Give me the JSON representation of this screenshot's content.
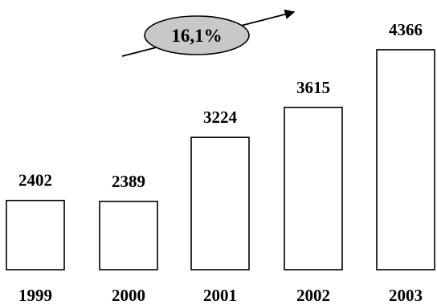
{
  "chart_data": {
    "type": "bar",
    "categories": [
      "1999",
      "2000",
      "2001",
      "2002",
      "2003"
    ],
    "values": [
      2402,
      2389,
      3224,
      3615,
      4366
    ],
    "ylim": [
      1500,
      4700
    ],
    "grid": false,
    "annotation": {
      "text": "16,1%",
      "fill_color": "#c8c8c8"
    }
  }
}
